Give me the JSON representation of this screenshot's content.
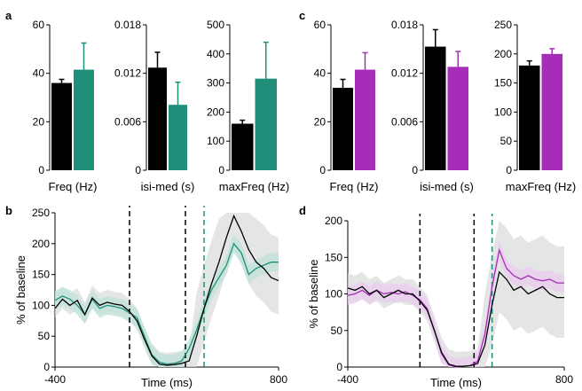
{
  "colors": {
    "black": "#000000",
    "teal": "#1f8f7a",
    "purple": "#a62db8",
    "band_grey": "#d9dcdc",
    "teal_band": "#bfe2da",
    "purple_band": "#e8cdee"
  },
  "chart_data": [
    {
      "panel": "a",
      "type": "bar",
      "xlabel": "Freq (Hz)",
      "ylim": [
        0,
        60
      ],
      "yticks": [
        "0",
        "20",
        "40",
        "60"
      ],
      "tick_values": [
        0,
        20,
        40,
        60
      ],
      "values": [
        36,
        41.5
      ],
      "errors": [
        1.5,
        11
      ],
      "colors": [
        "#000000",
        "#1f8f7a"
      ]
    },
    {
      "panel": "a",
      "type": "bar",
      "xlabel": "isi-med (s)",
      "ylim": [
        0,
        0.018
      ],
      "yticks": [
        "0",
        "0.006",
        "0.012",
        "0.018"
      ],
      "tick_values": [
        0,
        0.006,
        0.012,
        0.018
      ],
      "values": [
        0.0127,
        0.0081
      ],
      "errors": [
        0.0019,
        0.0028
      ],
      "colors": [
        "#000000",
        "#1f8f7a"
      ]
    },
    {
      "panel": "a",
      "type": "bar",
      "xlabel": "maxFreq (Hz)",
      "ylim": [
        0,
        500
      ],
      "yticks": [
        "0",
        "100",
        "200",
        "300",
        "400",
        "500"
      ],
      "tick_values": [
        0,
        100,
        200,
        300,
        400,
        500
      ],
      "values": [
        160,
        315
      ],
      "errors": [
        12,
        125
      ],
      "colors": [
        "#000000",
        "#1f8f7a"
      ]
    },
    {
      "panel": "c",
      "type": "bar",
      "xlabel": "Freq (Hz)",
      "ylim": [
        0,
        60
      ],
      "yticks": [
        "0",
        "20",
        "40",
        "60"
      ],
      "tick_values": [
        0,
        20,
        40,
        60
      ],
      "values": [
        34,
        41.5
      ],
      "errors": [
        3.5,
        7
      ],
      "colors": [
        "#000000",
        "#a62db8"
      ]
    },
    {
      "panel": "c",
      "type": "bar",
      "xlabel": "isi-med (s)",
      "ylim": [
        0,
        0.018
      ],
      "yticks": [
        "0",
        "0.006",
        "0.012",
        "0.018"
      ],
      "tick_values": [
        0,
        0.006,
        0.012,
        0.018
      ],
      "values": [
        0.0153,
        0.0128
      ],
      "errors": [
        0.0021,
        0.0019
      ],
      "colors": [
        "#000000",
        "#a62db8"
      ]
    },
    {
      "panel": "c",
      "type": "bar",
      "xlabel": "maxFreq (Hz)",
      "ylim": [
        0,
        250
      ],
      "yticks": [
        "0",
        "50",
        "100",
        "150",
        "200",
        "250"
      ],
      "tick_values": [
        0,
        50,
        100,
        150,
        200,
        250
      ],
      "values": [
        180,
        200
      ],
      "errors": [
        8,
        9
      ],
      "colors": [
        "#000000",
        "#a62db8"
      ]
    },
    {
      "panel": "b",
      "type": "line",
      "xlabel": "Time (ms)",
      "ylabel": "% of baseline",
      "xlim": [
        -400,
        800
      ],
      "ylim": [
        0,
        250
      ],
      "xtick_labels": [
        "-400",
        "800"
      ],
      "xtick_values": [
        -400,
        800
      ],
      "yticks": [
        "0",
        "50",
        "100",
        "150",
        "200",
        "250"
      ],
      "tick_values": [
        0,
        50,
        100,
        150,
        200,
        250
      ],
      "vlines": [
        {
          "x": 0,
          "color": "#000000"
        },
        {
          "x": 300,
          "color": "#000000"
        },
        {
          "x": 400,
          "color": "#1f8f7a"
        }
      ],
      "x": [
        -400,
        -360,
        -320,
        -280,
        -240,
        -200,
        -160,
        -120,
        -80,
        -40,
        0,
        40,
        80,
        120,
        160,
        200,
        240,
        280,
        320,
        360,
        400,
        440,
        480,
        520,
        560,
        600,
        640,
        680,
        720,
        760,
        800
      ],
      "series": [
        {
          "color": "#000000",
          "band": 0,
          "values": [
            95,
            110,
            100,
            108,
            85,
            112,
            100,
            105,
            102,
            100,
            90,
            75,
            45,
            18,
            5,
            3,
            4,
            6,
            10,
            50,
            95,
            135,
            170,
            210,
            245,
            220,
            190,
            170,
            160,
            145,
            140
          ]
        },
        {
          "color": "#1f8f7a",
          "band": 30,
          "values": [
            108,
            115,
            110,
            100,
            85,
            110,
            95,
            100,
            98,
            95,
            88,
            80,
            50,
            20,
            8,
            5,
            6,
            10,
            30,
            60,
            95,
            125,
            145,
            165,
            200,
            185,
            150,
            160,
            165,
            170,
            170
          ]
        }
      ]
    },
    {
      "panel": "d",
      "type": "line",
      "xlabel": "Time (ms)",
      "ylabel": "% of baseline",
      "xlim": [
        -400,
        800
      ],
      "ylim": [
        0,
        200
      ],
      "xtick_labels": [
        "-400",
        "800"
      ],
      "xtick_values": [
        -400,
        800
      ],
      "yticks": [
        "0",
        "50",
        "100",
        "150",
        "200"
      ],
      "tick_values": [
        0,
        50,
        100,
        150,
        200
      ],
      "vlines": [
        {
          "x": 0,
          "color": "#000000"
        },
        {
          "x": 300,
          "color": "#000000"
        },
        {
          "x": 400,
          "color": "#1f8f7a"
        }
      ],
      "x": [
        -400,
        -360,
        -320,
        -280,
        -240,
        -200,
        -160,
        -120,
        -80,
        -40,
        0,
        40,
        80,
        120,
        160,
        200,
        240,
        280,
        320,
        360,
        400,
        440,
        480,
        520,
        560,
        600,
        640,
        680,
        720,
        760,
        800
      ],
      "series": [
        {
          "color": "#000000",
          "band": 0,
          "values": [
            108,
            105,
            110,
            100,
            105,
            95,
            100,
            105,
            100,
            100,
            90,
            78,
            50,
            20,
            4,
            1,
            1,
            2,
            5,
            30,
            85,
            130,
            120,
            105,
            110,
            100,
            105,
            110,
            100,
            95,
            95
          ]
        },
        {
          "color": "#a62db8",
          "band": 25,
          "values": [
            98,
            100,
            105,
            98,
            105,
            100,
            102,
            100,
            103,
            98,
            92,
            80,
            50,
            18,
            3,
            0,
            1,
            2,
            8,
            45,
            110,
            160,
            135,
            125,
            120,
            125,
            120,
            118,
            120,
            115,
            115
          ]
        }
      ]
    }
  ],
  "labels": {
    "a": "a",
    "b": "b",
    "c": "c",
    "d": "d"
  }
}
